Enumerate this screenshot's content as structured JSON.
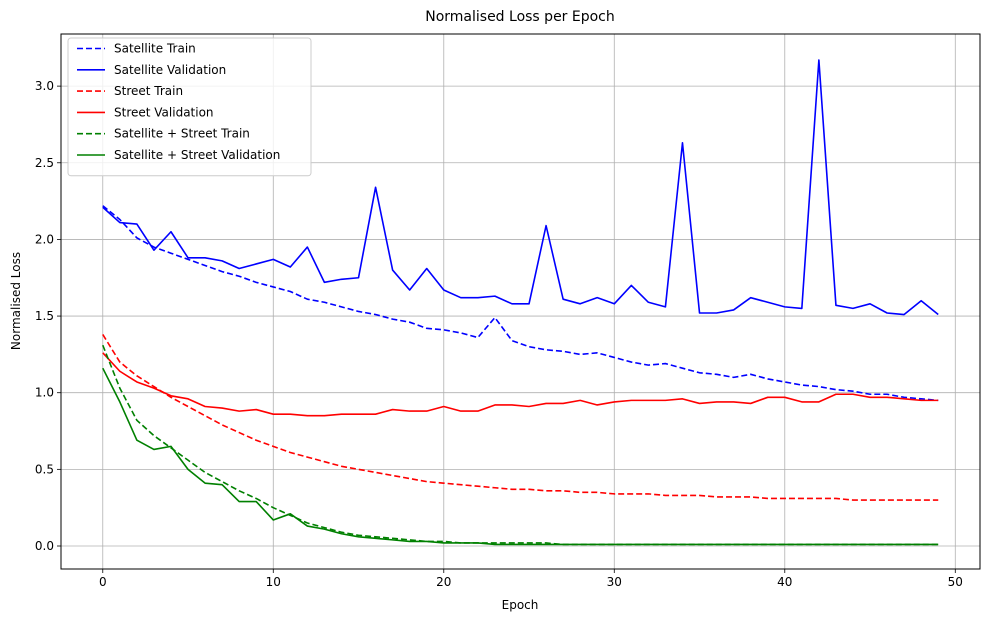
{
  "chart_data": {
    "type": "line",
    "title": "Normalised Loss per Epoch",
    "xlabel": "Epoch",
    "ylabel": "Normalised Loss",
    "xlim": [
      -2.45,
      51.45
    ],
    "ylim": [
      -0.15,
      3.34
    ],
    "xticks": [
      0,
      10,
      20,
      30,
      40,
      50
    ],
    "yticks": [
      0.0,
      0.5,
      1.0,
      1.5,
      2.0,
      2.5,
      3.0
    ],
    "xtick_labels": [
      "0",
      "10",
      "20",
      "30",
      "40",
      "50"
    ],
    "ytick_labels": [
      "0.0",
      "0.5",
      "1.0",
      "1.5",
      "2.0",
      "2.5",
      "3.0"
    ],
    "grid": true,
    "legend_position": "top-left",
    "x": [
      0,
      1,
      2,
      3,
      4,
      5,
      6,
      7,
      8,
      9,
      10,
      11,
      12,
      13,
      14,
      15,
      16,
      17,
      18,
      19,
      20,
      21,
      22,
      23,
      24,
      25,
      26,
      27,
      28,
      29,
      30,
      31,
      32,
      33,
      34,
      35,
      36,
      37,
      38,
      39,
      40,
      41,
      42,
      43,
      44,
      45,
      46,
      47,
      48,
      49
    ],
    "series": [
      {
        "name": "Satellite Train",
        "color": "#0000ff",
        "dash": true,
        "values": [
          2.22,
          2.13,
          2.01,
          1.95,
          1.91,
          1.87,
          1.83,
          1.79,
          1.76,
          1.72,
          1.69,
          1.66,
          1.61,
          1.59,
          1.56,
          1.53,
          1.51,
          1.48,
          1.46,
          1.42,
          1.41,
          1.39,
          1.36,
          1.49,
          1.34,
          1.3,
          1.28,
          1.27,
          1.25,
          1.26,
          1.23,
          1.2,
          1.18,
          1.19,
          1.16,
          1.13,
          1.12,
          1.1,
          1.12,
          1.09,
          1.07,
          1.05,
          1.04,
          1.02,
          1.01,
          0.99,
          0.99,
          0.97,
          0.96,
          0.95
        ]
      },
      {
        "name": "Satellite Validation",
        "color": "#0000ff",
        "dash": false,
        "values": [
          2.21,
          2.11,
          2.1,
          1.93,
          2.05,
          1.88,
          1.88,
          1.86,
          1.81,
          1.84,
          1.87,
          1.82,
          1.95,
          1.72,
          1.74,
          1.75,
          2.34,
          1.8,
          1.67,
          1.81,
          1.67,
          1.62,
          1.62,
          1.63,
          1.58,
          1.58,
          2.09,
          1.61,
          1.58,
          1.62,
          1.58,
          1.7,
          1.59,
          1.56,
          2.63,
          1.52,
          1.52,
          1.54,
          1.62,
          1.59,
          1.56,
          1.55,
          3.17,
          1.57,
          1.55,
          1.58,
          1.52,
          1.51,
          1.6,
          1.51
        ]
      },
      {
        "name": "Street Train",
        "color": "#ff0000",
        "dash": true,
        "values": [
          1.38,
          1.2,
          1.11,
          1.04,
          0.97,
          0.91,
          0.85,
          0.79,
          0.74,
          0.69,
          0.65,
          0.61,
          0.58,
          0.55,
          0.52,
          0.5,
          0.48,
          0.46,
          0.44,
          0.42,
          0.41,
          0.4,
          0.39,
          0.38,
          0.37,
          0.37,
          0.36,
          0.36,
          0.35,
          0.35,
          0.34,
          0.34,
          0.34,
          0.33,
          0.33,
          0.33,
          0.32,
          0.32,
          0.32,
          0.31,
          0.31,
          0.31,
          0.31,
          0.31,
          0.3,
          0.3,
          0.3,
          0.3,
          0.3,
          0.3
        ]
      },
      {
        "name": "Street Validation",
        "color": "#ff0000",
        "dash": false,
        "values": [
          1.26,
          1.14,
          1.07,
          1.03,
          0.98,
          0.96,
          0.91,
          0.9,
          0.88,
          0.89,
          0.86,
          0.86,
          0.85,
          0.85,
          0.86,
          0.86,
          0.86,
          0.89,
          0.88,
          0.88,
          0.91,
          0.88,
          0.88,
          0.92,
          0.92,
          0.91,
          0.93,
          0.93,
          0.95,
          0.92,
          0.94,
          0.95,
          0.95,
          0.95,
          0.96,
          0.93,
          0.94,
          0.94,
          0.93,
          0.97,
          0.97,
          0.94,
          0.94,
          0.99,
          0.99,
          0.97,
          0.97,
          0.96,
          0.95,
          0.95
        ]
      },
      {
        "name": "Satellite + Street Train",
        "color": "#008000",
        "dash": true,
        "values": [
          1.31,
          1.03,
          0.82,
          0.72,
          0.64,
          0.56,
          0.48,
          0.42,
          0.36,
          0.31,
          0.25,
          0.2,
          0.15,
          0.12,
          0.09,
          0.07,
          0.06,
          0.05,
          0.04,
          0.03,
          0.03,
          0.02,
          0.02,
          0.02,
          0.02,
          0.02,
          0.02,
          0.01,
          0.01,
          0.01,
          0.01,
          0.01,
          0.01,
          0.01,
          0.01,
          0.01,
          0.01,
          0.01,
          0.01,
          0.01,
          0.01,
          0.01,
          0.01,
          0.01,
          0.01,
          0.01,
          0.01,
          0.01,
          0.01,
          0.01
        ]
      },
      {
        "name": "Satellite + Street Validation",
        "color": "#008000",
        "dash": false,
        "values": [
          1.16,
          0.94,
          0.69,
          0.63,
          0.65,
          0.5,
          0.41,
          0.4,
          0.29,
          0.29,
          0.17,
          0.21,
          0.13,
          0.11,
          0.08,
          0.06,
          0.05,
          0.04,
          0.03,
          0.03,
          0.02,
          0.02,
          0.02,
          0.01,
          0.01,
          0.01,
          0.01,
          0.01,
          0.01,
          0.01,
          0.01,
          0.01,
          0.01,
          0.01,
          0.01,
          0.01,
          0.01,
          0.01,
          0.01,
          0.01,
          0.01,
          0.01,
          0.01,
          0.01,
          0.01,
          0.01,
          0.01,
          0.01,
          0.01,
          0.01
        ]
      }
    ]
  }
}
